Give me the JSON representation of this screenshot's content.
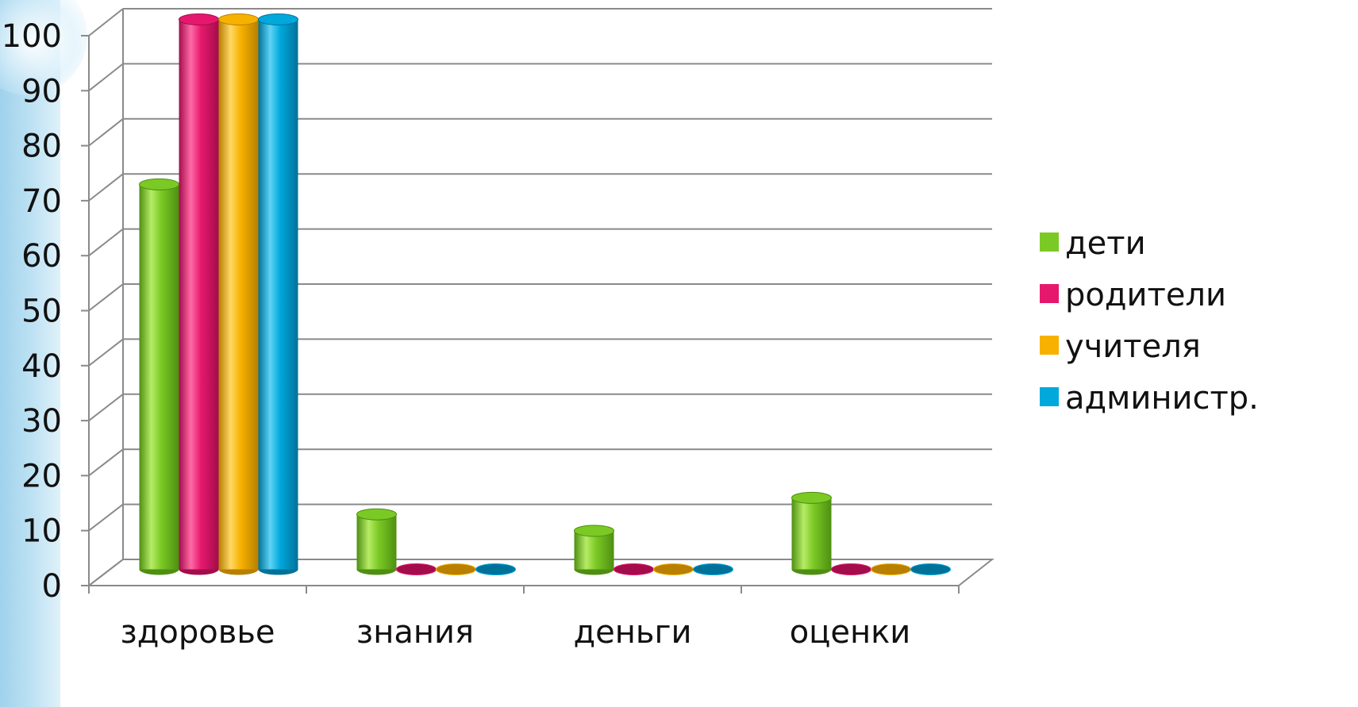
{
  "chart_data": {
    "type": "bar",
    "categories": [
      "здоровье",
      "знания",
      "деньги",
      "оценки"
    ],
    "series": [
      {
        "name": "дети",
        "values": [
          70,
          10,
          7,
          13
        ],
        "color": "#7bc924",
        "dark": "#4e8f12",
        "light": "#b6ec66"
      },
      {
        "name": "родители",
        "values": [
          100,
          0,
          0,
          0
        ],
        "color": "#e6186e",
        "dark": "#a30d4c",
        "light": "#ff6aa6"
      },
      {
        "name": "учителя",
        "values": [
          100,
          0,
          0,
          0
        ],
        "color": "#f7b200",
        "dark": "#b87f00",
        "light": "#ffd866"
      },
      {
        "name": "администр.",
        "values": [
          100,
          0,
          0,
          0
        ],
        "color": "#00a8dc",
        "dark": "#00729a",
        "light": "#5fd3f5"
      }
    ],
    "yticks": [
      0,
      10,
      20,
      30,
      40,
      50,
      60,
      70,
      80,
      90,
      100
    ],
    "ylim": [
      0,
      100
    ],
    "grid": true,
    "legend": "right",
    "three_d": true,
    "bar_shape": "cylinder"
  }
}
